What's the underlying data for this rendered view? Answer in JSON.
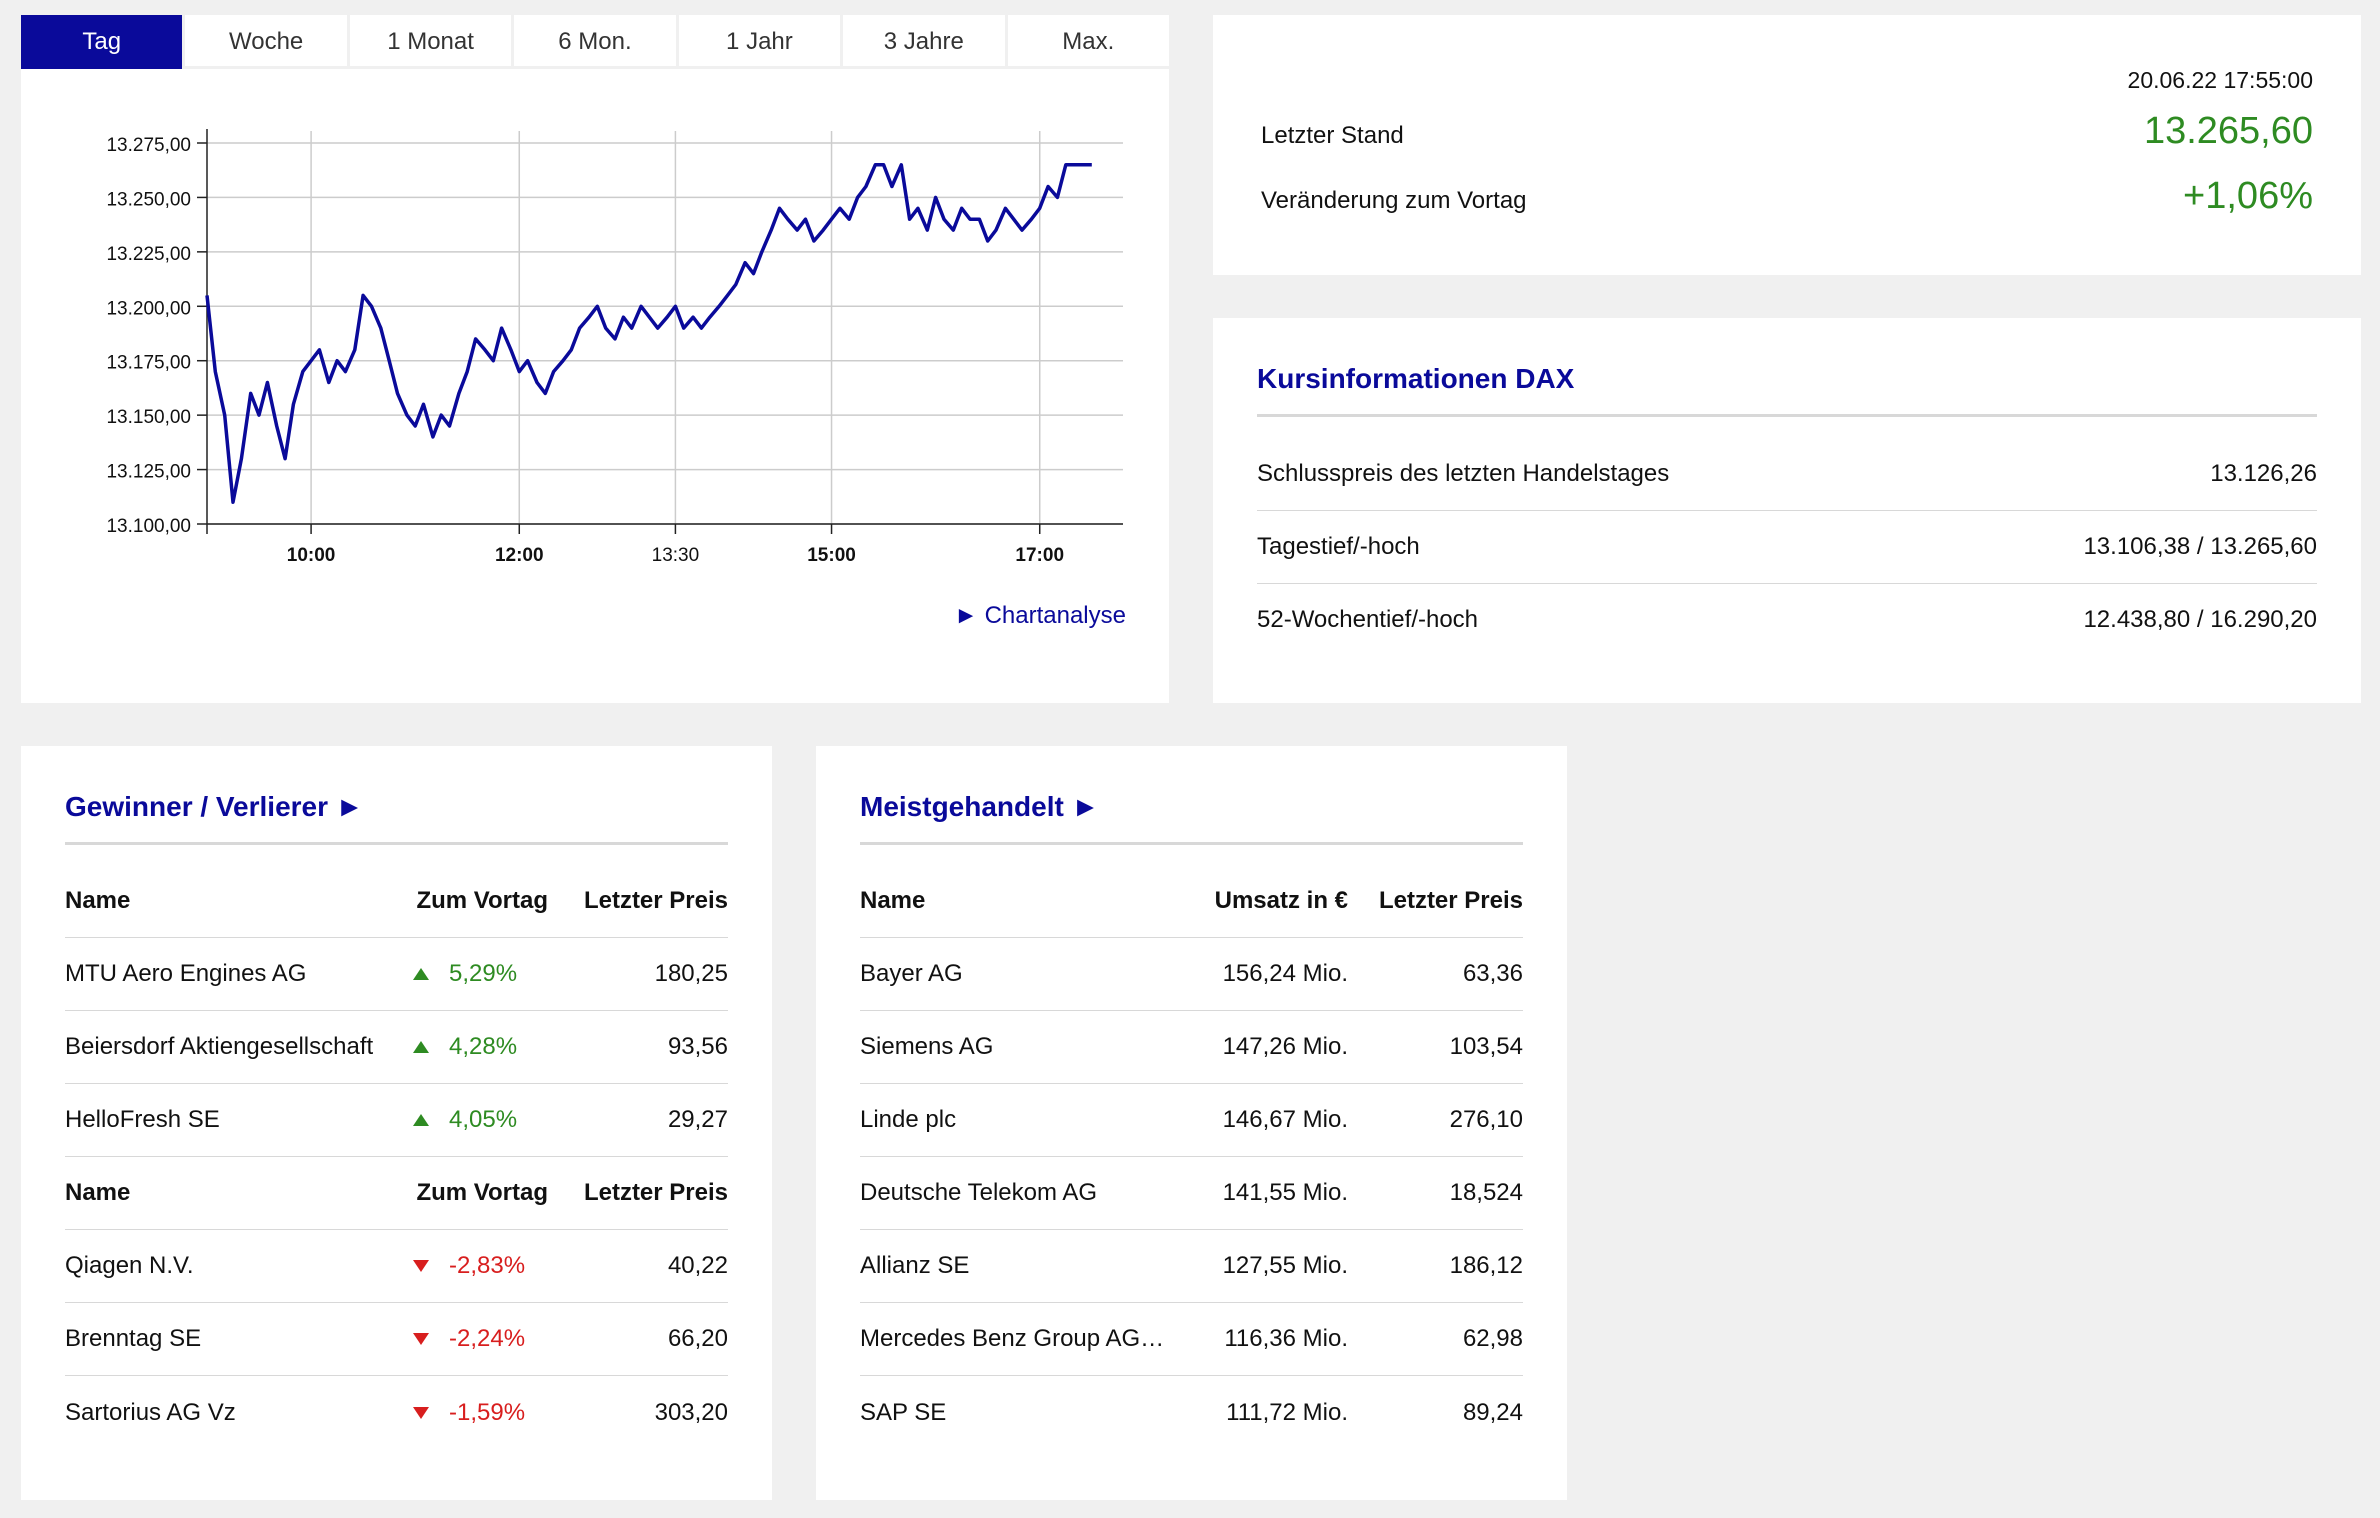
{
  "tabs": [
    "Tag",
    "Woche",
    "1 Monat",
    "6 Mon.",
    "1 Jahr",
    "3 Jahre",
    "Max."
  ],
  "active_tab": "Tag",
  "chart_link": "► Chartanalyse",
  "chart_data": {
    "type": "line",
    "series": [
      {
        "x": [
          9.0,
          9.08,
          9.17,
          9.25,
          9.33,
          9.42,
          9.5,
          9.58,
          9.67,
          9.75,
          9.83,
          9.92,
          10.0,
          10.08,
          10.17,
          10.25,
          10.33,
          10.42,
          10.5,
          10.58,
          10.67,
          10.75,
          10.83,
          10.92,
          11.0,
          11.08,
          11.17,
          11.25,
          11.33,
          11.42,
          11.5,
          11.58,
          11.67,
          11.75,
          11.83,
          11.92,
          12.0,
          12.08,
          12.17,
          12.25,
          12.33,
          12.42,
          12.5,
          12.58,
          12.67,
          12.75,
          12.83,
          12.92,
          13.0,
          13.08,
          13.17,
          13.25,
          13.33,
          13.42,
          13.5,
          13.58,
          13.67,
          13.75,
          13.83,
          13.92,
          14.0,
          14.08,
          14.17,
          14.25,
          14.33,
          14.42,
          14.5,
          14.58,
          14.67,
          14.75,
          14.83,
          14.92,
          15.0,
          15.08,
          15.17,
          15.25,
          15.33,
          15.42,
          15.5,
          15.58,
          15.67,
          15.75,
          15.83,
          15.92,
          16.0,
          16.08,
          16.17,
          16.25,
          16.33,
          16.42,
          16.5,
          16.58,
          16.67,
          16.75,
          16.83,
          16.92,
          17.0,
          17.08,
          17.17,
          17.25,
          17.33,
          17.42,
          17.5
        ],
        "y": [
          13205,
          13170,
          13150,
          13110,
          13130,
          13160,
          13150,
          13165,
          13145,
          13130,
          13155,
          13170,
          13175,
          13180,
          13165,
          13175,
          13170,
          13180,
          13205,
          13200,
          13190,
          13175,
          13160,
          13150,
          13145,
          13155,
          13140,
          13150,
          13145,
          13160,
          13170,
          13185,
          13180,
          13175,
          13190,
          13180,
          13170,
          13175,
          13165,
          13160,
          13170,
          13175,
          13180,
          13190,
          13195,
          13200,
          13190,
          13185,
          13195,
          13190,
          13200,
          13195,
          13190,
          13195,
          13200,
          13190,
          13195,
          13190,
          13195,
          13200,
          13205,
          13210,
          13220,
          13215,
          13225,
          13235,
          13245,
          13240,
          13235,
          13240,
          13230,
          13235,
          13240,
          13245,
          13240,
          13250,
          13255,
          13265,
          13265,
          13255,
          13265,
          13240,
          13245,
          13235,
          13250,
          13240,
          13235,
          13245,
          13240,
          13240,
          13230,
          13235,
          13245,
          13240,
          13235,
          13240,
          13245,
          13255,
          13250,
          13265,
          13265,
          13265,
          13265
        ]
      }
    ],
    "y_ticks": [
      "13.275,00",
      "13.250,00",
      "13.225,00",
      "13.200,00",
      "13.175,00",
      "13.150,00",
      "13.125,00",
      "13.100,00"
    ],
    "ylim": [
      13100,
      13275
    ],
    "x_ticks": [
      {
        "label": "10:00",
        "x": 10.0,
        "bold": true
      },
      {
        "label": "12:00",
        "x": 12.0,
        "bold": true
      },
      {
        "label": "13:30",
        "x": 13.5,
        "bold": false
      },
      {
        "label": "15:00",
        "x": 15.0,
        "bold": true
      },
      {
        "label": "17:00",
        "x": 17.0,
        "bold": true
      }
    ],
    "xlim": [
      9.0,
      17.8
    ],
    "grid": true,
    "line_color": "#0a0a9a"
  },
  "stand": {
    "timestamp": "20.06.22 17:55:00",
    "last_label": "Letzter Stand",
    "last_value": "13.265,60",
    "change_label": "Veränderung zum Vortag",
    "change_value": "+1,06%"
  },
  "kurs": {
    "title": "Kursinformationen DAX",
    "rows": [
      {
        "label": "Schlusspreis des letzten Handelstages",
        "value": "13.126,26"
      },
      {
        "label": "Tagestief/-hoch",
        "value": "13.106,38 / 13.265,60"
      },
      {
        "label": "52-Wochentief/-hoch",
        "value": "12.438,80 / 16.290,20"
      }
    ]
  },
  "gv": {
    "title": "Gewinner / Verlierer ►",
    "head": {
      "name": "Name",
      "chg": "Zum Vortag",
      "price": "Letzter Preis"
    },
    "winners": [
      {
        "name": "MTU Aero Engines AG",
        "chg": "5,29%",
        "price": "180,25"
      },
      {
        "name": "Beiersdorf Aktiengesellschaft",
        "chg": "4,28%",
        "price": "93,56"
      },
      {
        "name": "HelloFresh SE",
        "chg": "4,05%",
        "price": "29,27"
      }
    ],
    "losers": [
      {
        "name": "Qiagen N.V.",
        "chg": "-2,83%",
        "price": "40,22"
      },
      {
        "name": "Brenntag SE",
        "chg": "-2,24%",
        "price": "66,20"
      },
      {
        "name": "Sartorius AG Vz",
        "chg": "-1,59%",
        "price": "303,20"
      }
    ],
    "up_color": "#2e8b22",
    "down_color": "#d81e1e"
  },
  "mg": {
    "title": "Meistgehandelt ►",
    "head": {
      "name": "Name",
      "ums": "Umsatz in €",
      "price": "Letzter Preis"
    },
    "rows": [
      {
        "name": "Bayer AG",
        "ums": "156,24 Mio.",
        "price": "63,36"
      },
      {
        "name": "Siemens AG",
        "ums": "147,26 Mio.",
        "price": "103,54"
      },
      {
        "name": "Linde plc",
        "ums": "146,67 Mio.",
        "price": "276,10"
      },
      {
        "name": "Deutsche Telekom AG",
        "ums": "141,55 Mio.",
        "price": "18,524"
      },
      {
        "name": "Allianz SE",
        "ums": "127,55 Mio.",
        "price": "186,12"
      },
      {
        "name": "Mercedes Benz Group AG…",
        "ums": "116,36 Mio.",
        "price": "62,98"
      },
      {
        "name": "SAP SE",
        "ums": "111,72 Mio.",
        "price": "89,24"
      }
    ]
  }
}
